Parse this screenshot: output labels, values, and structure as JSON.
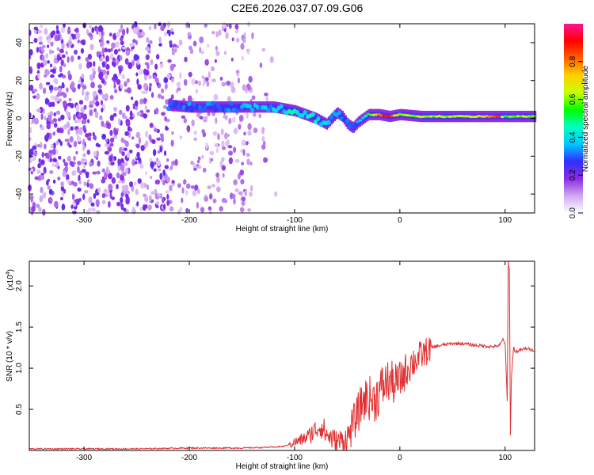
{
  "title": "C2E6.2026.037.07.09.G06",
  "chart_data": [
    {
      "type": "heatmap",
      "name": "spectrogram",
      "xlabel": "Height of straight line (km)",
      "ylabel": "Frequency (Hz)",
      "xlim": [
        -352,
        128
      ],
      "ylim": [
        -50,
        50
      ],
      "xticks": [
        -300,
        -200,
        -100,
        0,
        100
      ],
      "xtick_labels": [
        "-300",
        "-200",
        "-100",
        "0",
        "100"
      ],
      "yticks": [
        -40,
        -20,
        0,
        20,
        40
      ],
      "ytick_labels": [
        "-40",
        "-20",
        "0",
        "20",
        "40"
      ],
      "colorbar": {
        "label": "Normalized spectral amplitude",
        "range": [
          0,
          1
        ],
        "ticks": [
          0.0,
          0.2,
          0.4,
          0.6,
          0.8
        ],
        "tick_labels": [
          "0.0",
          "0.2",
          "0.4",
          "0.6",
          "0.8"
        ],
        "colors": [
          "#ffffff",
          "#d0a8f0",
          "#8a2be2",
          "#3030ff",
          "#00c8ff",
          "#00ffc0",
          "#00ff00",
          "#c8ff00",
          "#ffd000",
          "#ff6000",
          "#ff0000",
          "#ff1493"
        ]
      },
      "signal_track": {
        "x": [
          -220,
          -200,
          -180,
          -160,
          -140,
          -120,
          -100,
          -90,
          -80,
          -70,
          -60,
          -55,
          -50,
          -45,
          -40,
          -35,
          -30,
          -20,
          -10,
          0,
          20,
          40,
          60,
          80,
          95,
          100,
          105,
          128
        ],
        "freq": [
          7,
          6,
          6,
          6,
          6,
          6,
          4,
          2,
          0,
          -3,
          3,
          1,
          -3,
          -5,
          -2,
          0,
          2,
          2,
          1,
          2,
          1,
          1,
          1,
          1,
          1,
          1,
          1,
          1
        ],
        "amp": [
          0.3,
          0.3,
          0.3,
          0.3,
          0.35,
          0.35,
          0.45,
          0.4,
          0.4,
          0.35,
          0.3,
          0.3,
          0.3,
          0.3,
          0.35,
          0.4,
          0.5,
          0.8,
          0.9,
          0.6,
          0.6,
          0.6,
          0.65,
          0.7,
          0.95,
          0.4,
          0.6,
          0.6
        ]
      }
    },
    {
      "type": "line",
      "name": "snr",
      "xlabel": "Height of straight line (km)",
      "ylabel": "SNR (10 * v/v)",
      "y_multiplier": "(x10",
      "y_multiplier_exp": "4",
      "y_multiplier_close": ")",
      "xlim": [
        -352,
        128
      ],
      "ylim": [
        0,
        2.3
      ],
      "xticks": [
        -300,
        -200,
        -100,
        0,
        100
      ],
      "xtick_labels": [
        "-300",
        "-200",
        "-100",
        "0",
        "100"
      ],
      "yticks": [
        0.5,
        1.0,
        1.5,
        2.0
      ],
      "ytick_labels": [
        "0.5",
        "1.0",
        "1.5",
        "2.0"
      ],
      "color": "#e03030",
      "x": [
        -352,
        -300,
        -250,
        -200,
        -150,
        -120,
        -110,
        -100,
        -95,
        -90,
        -85,
        -80,
        -75,
        -70,
        -65,
        -60,
        -55,
        -50,
        -45,
        -40,
        -35,
        -30,
        -25,
        -20,
        -15,
        -10,
        -5,
        0,
        5,
        10,
        15,
        20,
        25,
        30,
        40,
        50,
        60,
        70,
        80,
        90,
        95,
        98,
        100,
        102,
        103,
        104,
        105,
        106,
        108,
        110,
        120,
        128
      ],
      "y": [
        0.02,
        0.02,
        0.02,
        0.03,
        0.03,
        0.04,
        0.05,
        0.1,
        0.12,
        0.15,
        0.2,
        0.25,
        0.3,
        0.2,
        0.15,
        0.1,
        0.12,
        0.15,
        0.3,
        0.45,
        0.6,
        0.65,
        0.6,
        0.7,
        0.8,
        0.85,
        0.8,
        0.85,
        0.95,
        1.05,
        1.1,
        1.15,
        1.2,
        1.25,
        1.28,
        1.3,
        1.3,
        1.28,
        1.27,
        1.26,
        1.28,
        1.35,
        1.3,
        0.6,
        2.3,
        2.2,
        0.2,
        0.9,
        1.25,
        1.2,
        1.24,
        1.22
      ]
    }
  ]
}
